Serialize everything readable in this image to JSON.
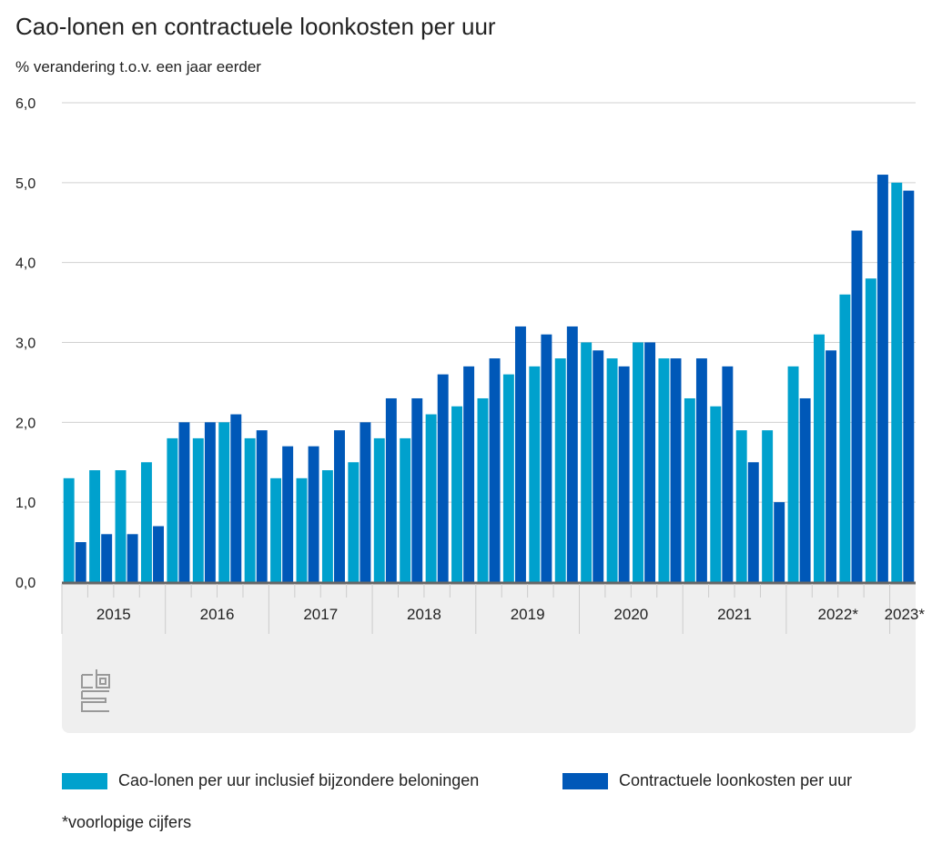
{
  "title": "Cao-lonen en contractuele loonkosten per uur",
  "subtitle": "% verandering t.o.v. een jaar eerder",
  "footnote": "*voorlopige cijfers",
  "colors": {
    "light": "#00a1cd",
    "dark": "#0058b8"
  },
  "chart_data": {
    "type": "bar",
    "title": "Cao-lonen en contractuele loonkosten per uur",
    "ylabel": "% verandering t.o.v. een jaar eerder",
    "ylim": [
      0,
      6
    ],
    "yticks": [
      "0,0",
      "1,0",
      "2,0",
      "3,0",
      "4,0",
      "5,0",
      "6,0"
    ],
    "years": [
      "2015",
      "2016",
      "2017",
      "2018",
      "2019",
      "2020",
      "2021",
      "2022*",
      "2023*"
    ],
    "quarters_per_year": [
      4,
      4,
      4,
      4,
      4,
      4,
      4,
      4,
      1
    ],
    "series": [
      {
        "name": "Cao-lonen per uur inclusief bijzondere beloningen",
        "values": [
          1.3,
          1.4,
          1.4,
          1.5,
          1.8,
          1.8,
          2.0,
          1.8,
          1.3,
          1.3,
          1.4,
          1.5,
          1.8,
          1.8,
          2.1,
          2.2,
          2.3,
          2.6,
          2.7,
          2.8,
          3.0,
          2.8,
          3.0,
          2.8,
          2.3,
          2.2,
          1.9,
          1.9,
          2.7,
          3.1,
          3.6,
          3.8,
          5.0
        ]
      },
      {
        "name": "Contractuele loonkosten per uur",
        "values": [
          0.5,
          0.6,
          0.6,
          0.7,
          2.0,
          2.0,
          2.1,
          1.9,
          1.7,
          1.7,
          1.9,
          2.0,
          2.3,
          2.3,
          2.6,
          2.7,
          2.8,
          3.2,
          3.1,
          3.2,
          2.9,
          2.7,
          3.0,
          2.8,
          2.8,
          2.7,
          1.5,
          1.0,
          2.3,
          2.9,
          4.4,
          5.1,
          4.9
        ]
      }
    ]
  }
}
